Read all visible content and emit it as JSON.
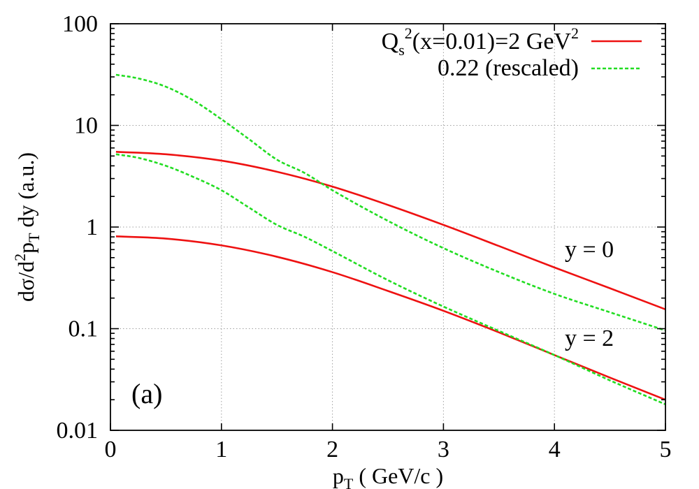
{
  "chart_data": {
    "type": "line",
    "xlabel": "p",
    "xlabel_sub": "T",
    "xlabel_rest": " ( GeV/c )",
    "ylabel_parts": [
      "dσ/d",
      "2",
      "p",
      "T",
      " dy  (a.u.)"
    ],
    "xlim": [
      0,
      5
    ],
    "ylim": [
      0.01,
      100
    ],
    "yscale": "log",
    "grid": true,
    "xticks": [
      "0",
      "1",
      "2",
      "3",
      "4",
      "5"
    ],
    "yticks": [
      "0.01",
      "0.1",
      "1",
      "10",
      "100"
    ],
    "legend": {
      "placement": "top-right",
      "entry1": {
        "q": "Q",
        "sub": "s",
        "sup1": "2",
        "mid": "(x=0.01)=2 GeV",
        "sup2": "2"
      },
      "entry2": "0.22 (rescaled)"
    },
    "annotations": {
      "y0": "y = 0",
      "y2": "y = 2",
      "panel": "(a)"
    },
    "colors": {
      "red": "#ee1111",
      "green": "#22dd22"
    },
    "series": [
      {
        "group": "Qs2=2, y=0",
        "color": "#ee1111",
        "style": "solid",
        "x": [
          0.05,
          0.5,
          1.0,
          1.5,
          2.0,
          2.5,
          3.0,
          3.5,
          4.0,
          4.5,
          5.0
        ],
        "y": [
          5.5,
          5.2,
          4.5,
          3.5,
          2.5,
          1.65,
          1.05,
          0.65,
          0.4,
          0.25,
          0.155
        ]
      },
      {
        "group": "0.22 rescaled, y=0",
        "color": "#22dd22",
        "style": "dashed",
        "x": [
          0.05,
          0.25,
          0.5,
          0.75,
          1.0,
          1.25,
          1.5,
          1.75,
          2.0,
          2.5,
          3.0,
          3.5,
          4.0,
          4.5,
          5.0
        ],
        "y": [
          31.5,
          29.0,
          24.0,
          17.5,
          11.5,
          7.3,
          4.6,
          3.4,
          2.3,
          1.15,
          0.62,
          0.36,
          0.22,
          0.145,
          0.096
        ]
      },
      {
        "group": "Qs2=2, y=2",
        "color": "#ee1111",
        "style": "solid",
        "x": [
          0.05,
          0.5,
          1.0,
          1.5,
          2.0,
          2.5,
          3.0,
          3.5,
          4.0,
          4.5,
          5.0
        ],
        "y": [
          0.81,
          0.77,
          0.66,
          0.51,
          0.36,
          0.235,
          0.15,
          0.092,
          0.055,
          0.033,
          0.02
        ]
      },
      {
        "group": "0.22 rescaled, y=2",
        "color": "#22dd22",
        "style": "dashed",
        "x": [
          0.05,
          0.25,
          0.5,
          0.75,
          1.0,
          1.25,
          1.5,
          1.75,
          2.0,
          2.5,
          3.0,
          3.5,
          4.0,
          4.5,
          5.0
        ],
        "y": [
          5.2,
          4.8,
          4.0,
          3.1,
          2.3,
          1.55,
          1.05,
          0.8,
          0.58,
          0.3,
          0.165,
          0.095,
          0.055,
          0.031,
          0.018
        ]
      }
    ]
  }
}
